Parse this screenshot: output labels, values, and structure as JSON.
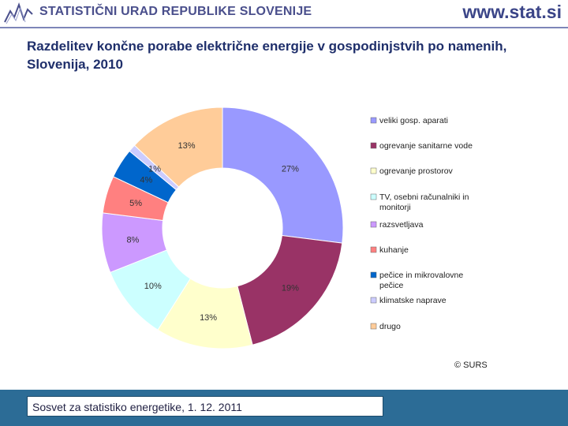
{
  "header": {
    "org_name": "STATISTIČNI URAD REPUBLIKE SLOVENIJE",
    "url": "www.stat.si",
    "logo_icon": "trend-zigzag-icon",
    "accent_color": "#3b4588"
  },
  "slide": {
    "title": "Razdelitev končne porabe električne energije v gospodinjstvih po namenih, Slovenija, 2010"
  },
  "chart_data": {
    "type": "pie",
    "style": "donut",
    "title": "",
    "slices": [
      {
        "name": "veliki gosp. aparati",
        "value": 27,
        "label": "27%",
        "color": "#9999ff"
      },
      {
        "name": "ogrevanje sanitarne vode",
        "value": 19,
        "label": "19%",
        "color": "#993366"
      },
      {
        "name": "ogrevanje prostorov",
        "value": 13,
        "label": "13%",
        "color": "#ffffcc"
      },
      {
        "name": "TV, osebni računalniki in monitorji",
        "value": 10,
        "label": "10%",
        "color": "#ccffff"
      },
      {
        "name": "razsvetljava",
        "value": 8,
        "label": "8%",
        "color": "#cc99ff"
      },
      {
        "name": "kuhanje",
        "value": 5,
        "label": "5%",
        "color": "#ff8080"
      },
      {
        "name": "pečice in mikrovalovne pečice",
        "value": 4,
        "label": "4%",
        "color": "#0066cc"
      },
      {
        "name": "klimatske naprave",
        "value": 1,
        "label": "1%",
        "color": "#ccccff"
      },
      {
        "name": "drugo",
        "value": 13,
        "label": "13%",
        "color": "#ffcc99"
      }
    ],
    "legend_position": "right",
    "source_note": "© SURS"
  },
  "footer": {
    "text": "Sosvet za statistiko energetike, 1. 12. 2011",
    "bar_color": "#2c6c96"
  }
}
